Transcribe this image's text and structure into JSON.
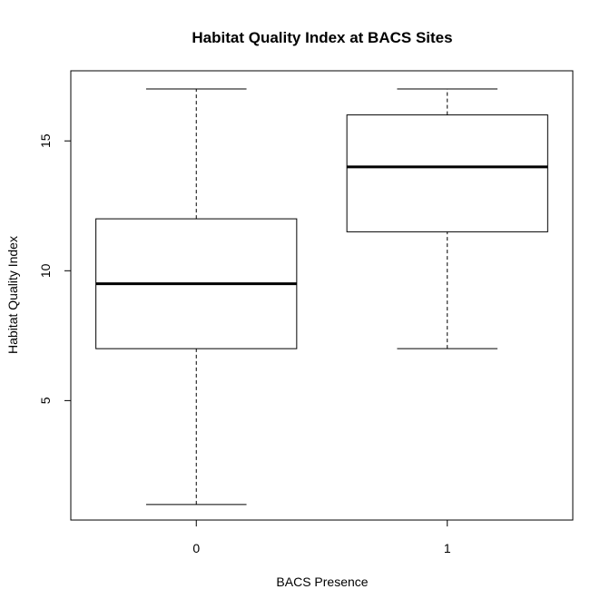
{
  "chart_data": {
    "type": "boxplot",
    "title": "Habitat Quality Index at BACS Sites",
    "xlabel": "BACS Presence",
    "ylabel": "Habitat Quality Index",
    "categories": [
      "0",
      "1"
    ],
    "boxes": [
      {
        "category": "0",
        "min": 1,
        "q1": 7,
        "median": 9.5,
        "q3": 12,
        "max": 17
      },
      {
        "category": "1",
        "min": 7,
        "q1": 11.5,
        "median": 14,
        "q3": 16,
        "max": 17
      }
    ],
    "ylim": [
      0.4,
      17.7
    ],
    "yticks": [
      5,
      10,
      15
    ],
    "grid": false,
    "legend": "none"
  }
}
